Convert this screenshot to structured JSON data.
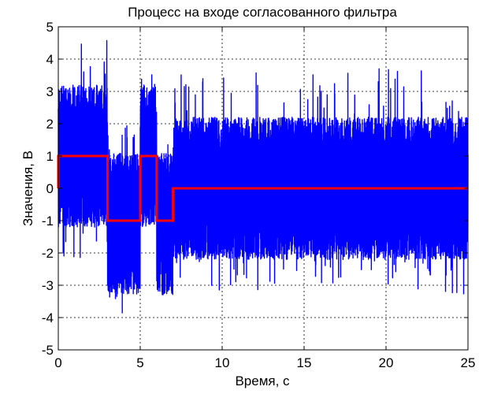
{
  "chart_data": {
    "type": "line",
    "title": "Процесс на входе согласованного фильтра",
    "xlabel": "Время, с",
    "ylabel": "Значения, В",
    "xlim": [
      0,
      25
    ],
    "ylim": [
      -5,
      5
    ],
    "xticks": [
      0,
      5,
      10,
      15,
      20,
      25
    ],
    "yticks": [
      -5,
      -4,
      -3,
      -2,
      -1,
      0,
      1,
      2,
      3,
      4,
      5
    ],
    "grid": true,
    "colors": {
      "noise": "#0000ff",
      "signal": "#ff0000"
    },
    "series": [
      {
        "kind": "noise_envelope",
        "segments": [
          {
            "x0": 0,
            "x1": 3,
            "mean": 1,
            "typ_max": 3.2,
            "peak_max": 4.7,
            "typ_min": -1.2,
            "peak_min": -2.6
          },
          {
            "x0": 3,
            "x1": 5,
            "mean": -1,
            "typ_max": 1.1,
            "peak_max": 2.0,
            "typ_min": -3.3,
            "peak_min": -4.3
          },
          {
            "x0": 5,
            "x1": 6,
            "mean": 1,
            "typ_max": 3.2,
            "peak_max": 4.2,
            "typ_min": -1.2,
            "peak_min": -2.0
          },
          {
            "x0": 6,
            "x1": 7,
            "mean": -1,
            "typ_max": 1.1,
            "peak_max": 1.6,
            "typ_min": -3.3,
            "peak_min": -4.1
          },
          {
            "x0": 7,
            "x1": 25,
            "mean": 0,
            "typ_max": 2.2,
            "peak_max": 3.7,
            "typ_min": -2.2,
            "peak_min": -3.3
          }
        ]
      },
      {
        "kind": "step",
        "points": [
          [
            0,
            0
          ],
          [
            0,
            1
          ],
          [
            3,
            1
          ],
          [
            3,
            -1
          ],
          [
            5,
            -1
          ],
          [
            5,
            1
          ],
          [
            6,
            1
          ],
          [
            6,
            -1
          ],
          [
            7,
            -1
          ],
          [
            7,
            0
          ],
          [
            25,
            0
          ]
        ]
      }
    ]
  }
}
